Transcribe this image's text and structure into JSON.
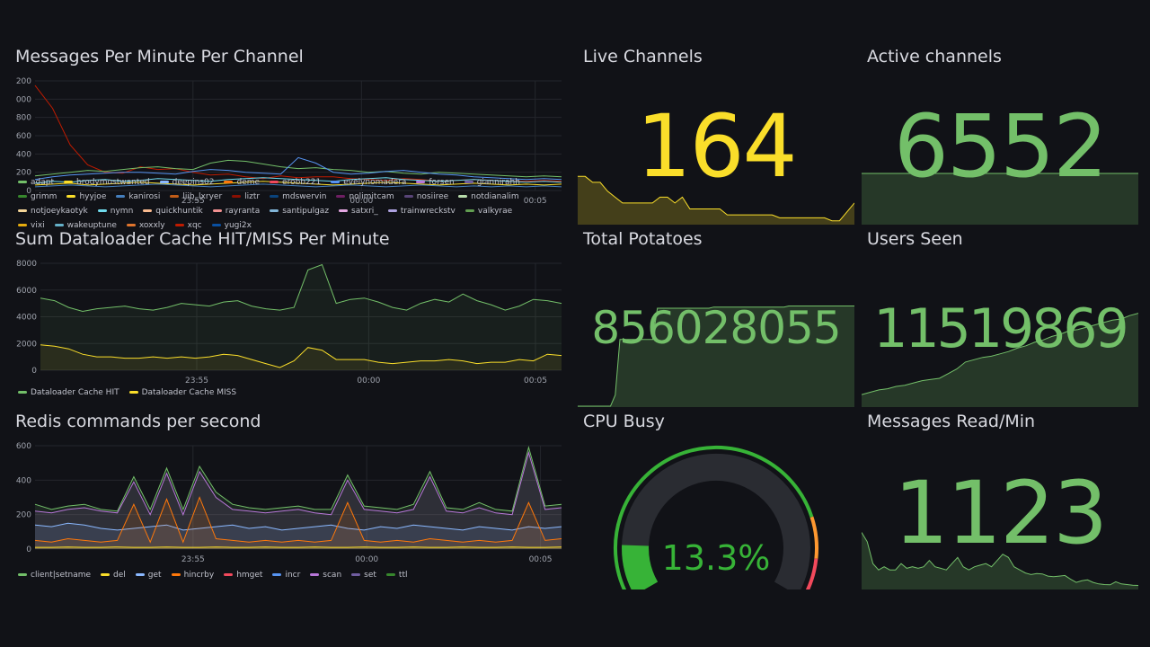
{
  "colors": {
    "background": "#111217",
    "grid": "#24262c",
    "axis_text": "#9fa3ad",
    "green": "#73bf69",
    "yellow": "#fade2a",
    "gauge_green": "#37b337",
    "gauge_orange": "#ff9830",
    "gauge_red": "#f2495c"
  },
  "panels": {
    "messages": {
      "title": "Messages Per Minute Per Channel",
      "legend": [
        {
          "name": "adapt",
          "color": "#73bf69"
        },
        {
          "name": "brodymostwanted",
          "color": "#fade2a"
        },
        {
          "name": "deepins02",
          "color": "#8ab8ff"
        },
        {
          "name": "deme",
          "color": "#ff780a"
        },
        {
          "name": "erobb221",
          "color": "#f2495c"
        },
        {
          "name": "evelynomadera",
          "color": "#5794f2"
        },
        {
          "name": "forsen",
          "color": "#b877d9"
        },
        {
          "name": "giannirahh",
          "color": "#705da0"
        },
        {
          "name": "grimm",
          "color": "#37872d"
        },
        {
          "name": "hyyjoe",
          "color": "#fade2a"
        },
        {
          "name": "kanirosi",
          "color": "#447ebc"
        },
        {
          "name": "liib_lxryer",
          "color": "#c15c17"
        },
        {
          "name": "liztr",
          "color": "#890f02"
        },
        {
          "name": "mdswervin",
          "color": "#0a437c"
        },
        {
          "name": "nolimitcam",
          "color": "#6d1f62"
        },
        {
          "name": "nosiiree",
          "color": "#584477"
        },
        {
          "name": "notdianalim",
          "color": "#b7dbab"
        },
        {
          "name": "notjoeykaotyk",
          "color": "#f4d598"
        },
        {
          "name": "nymn",
          "color": "#70dbed"
        },
        {
          "name": "quickhuntik",
          "color": "#f9ba8f"
        },
        {
          "name": "rayranta",
          "color": "#f29191"
        },
        {
          "name": "santipulgaz",
          "color": "#82b5d8"
        },
        {
          "name": "satxri_",
          "color": "#e5a8e2"
        },
        {
          "name": "trainwreckstv",
          "color": "#aea2e0"
        },
        {
          "name": "valkyrae",
          "color": "#629e51"
        },
        {
          "name": "vixi",
          "color": "#e5ac0e"
        },
        {
          "name": "wakeuptune",
          "color": "#64b0c8"
        },
        {
          "name": "xoxxly",
          "color": "#e0752d"
        },
        {
          "name": "xqc",
          "color": "#bf1b00"
        },
        {
          "name": "yugi2x",
          "color": "#0a50a1"
        }
      ]
    },
    "cache": {
      "title": "Sum Dataloader Cache HIT/MISS Per Minute",
      "legend": [
        {
          "name": "Dataloader Cache HIT",
          "color": "#73bf69"
        },
        {
          "name": "Dataloader Cache MISS",
          "color": "#fade2a"
        }
      ]
    },
    "redis": {
      "title": "Redis commands per second",
      "legend": [
        {
          "name": "client|setname",
          "color": "#73bf69"
        },
        {
          "name": "del",
          "color": "#fade2a"
        },
        {
          "name": "get",
          "color": "#8ab8ff"
        },
        {
          "name": "hincrby",
          "color": "#ff780a"
        },
        {
          "name": "hmget",
          "color": "#f2495c"
        },
        {
          "name": "incr",
          "color": "#5794f2"
        },
        {
          "name": "scan",
          "color": "#b877d9"
        },
        {
          "name": "set",
          "color": "#705da0"
        },
        {
          "name": "ttl",
          "color": "#37872d"
        }
      ]
    },
    "live_channels": {
      "title": "Live Channels",
      "value": "164"
    },
    "active_channels": {
      "title": "Active channels",
      "value": "6552"
    },
    "total_potatoes": {
      "title": "Total Potatoes",
      "value": "856028055"
    },
    "users_seen": {
      "title": "Users Seen",
      "value": "11519869"
    },
    "cpu_busy": {
      "title": "CPU Busy",
      "value": "13.3%",
      "percent": 13.3
    },
    "messages_read": {
      "title": "Messages Read/Min",
      "value": "1123"
    }
  },
  "chart_data": [
    {
      "type": "line",
      "id": "messages",
      "ylim": [
        0,
        1200
      ],
      "yticks": [
        "0",
        "200",
        "400",
        "600",
        "800",
        "1000",
        "1200"
      ],
      "xticks": [
        "23:55",
        "00:00",
        "00:05"
      ],
      "series": [
        {
          "name": "xqc",
          "color": "#bf1b00",
          "values": [
            1150,
            900,
            500,
            280,
            200,
            190,
            260,
            230,
            240,
            200,
            170,
            180,
            150,
            130,
            160,
            140,
            150,
            150,
            130,
            120,
            110,
            130,
            120,
            100,
            110,
            120,
            110,
            100,
            100,
            110,
            100
          ]
        },
        {
          "name": "adapt",
          "color": "#73bf69",
          "values": [
            160,
            180,
            200,
            220,
            210,
            230,
            250,
            260,
            240,
            230,
            300,
            330,
            320,
            290,
            260,
            240,
            250,
            230,
            220,
            200,
            210,
            190,
            180,
            200,
            190,
            180,
            170,
            160,
            150,
            160,
            150
          ]
        },
        {
          "name": "evelynomadera",
          "color": "#5794f2",
          "values": [
            120,
            150,
            170,
            180,
            190,
            200,
            200,
            190,
            180,
            210,
            230,
            220,
            200,
            190,
            180,
            360,
            300,
            200,
            180,
            190,
            210,
            220,
            200,
            180,
            170,
            150,
            140,
            130,
            120,
            130,
            120
          ]
        },
        {
          "name": "nymn",
          "color": "#70dbed",
          "values": [
            80,
            100,
            90,
            110,
            120,
            100,
            110,
            130,
            120,
            110,
            100,
            120,
            130,
            140,
            130,
            120,
            110,
            100,
            120,
            130,
            140,
            120,
            110,
            100,
            110,
            120,
            110,
            100,
            90,
            100,
            90
          ]
        },
        {
          "name": "brodymostwanted",
          "color": "#fade2a",
          "values": [
            60,
            70,
            80,
            60,
            70,
            80,
            90,
            80,
            70,
            60,
            70,
            80,
            90,
            100,
            90,
            80,
            70,
            60,
            70,
            80,
            90,
            80,
            70,
            60,
            70,
            80,
            70,
            60,
            70,
            60,
            70
          ]
        },
        {
          "name": "kanirosi",
          "color": "#447ebc",
          "values": [
            40,
            50,
            60,
            50,
            40,
            50,
            60,
            70,
            60,
            50,
            40,
            50,
            60,
            70,
            60,
            50,
            40,
            50,
            60,
            50,
            40,
            50,
            60,
            50,
            40,
            50,
            40,
            50,
            40,
            50,
            40
          ]
        }
      ]
    },
    {
      "type": "area",
      "id": "cache",
      "ylim": [
        0,
        8000
      ],
      "yticks": [
        "0",
        "2000",
        "4000",
        "6000",
        "8000"
      ],
      "xticks": [
        "23:55",
        "00:00",
        "00:05"
      ],
      "series": [
        {
          "name": "Dataloader Cache HIT",
          "color": "#73bf69",
          "values": [
            5400,
            5200,
            4700,
            4400,
            4600,
            4700,
            4800,
            4600,
            4500,
            4700,
            5000,
            4900,
            4800,
            5100,
            5200,
            4800,
            4600,
            4500,
            4700,
            7500,
            7900,
            5000,
            5300,
            5400,
            5100,
            4700,
            4500,
            5000,
            5300,
            5100,
            5700,
            5200,
            4900,
            4500,
            4800,
            5300,
            5200,
            5000
          ]
        },
        {
          "name": "Dataloader Cache MISS",
          "color": "#fade2a",
          "values": [
            1900,
            1800,
            1600,
            1200,
            1000,
            1000,
            900,
            900,
            1000,
            900,
            1000,
            900,
            1000,
            1200,
            1100,
            800,
            500,
            200,
            700,
            1700,
            1500,
            800,
            800,
            800,
            600,
            500,
            600,
            700,
            700,
            800,
            700,
            500,
            600,
            600,
            800,
            700,
            1200,
            1100
          ]
        }
      ]
    },
    {
      "type": "area",
      "id": "redis",
      "ylim": [
        0,
        600
      ],
      "yticks": [
        "0",
        "200",
        "400",
        "600"
      ],
      "xticks": [
        "23:55",
        "00:00",
        "00:05"
      ],
      "series": [
        {
          "name": "client|setname",
          "color": "#73bf69",
          "values": [
            260,
            230,
            250,
            260,
            230,
            220,
            420,
            230,
            470,
            230,
            480,
            330,
            260,
            240,
            230,
            240,
            250,
            230,
            230,
            430,
            250,
            240,
            230,
            260,
            450,
            240,
            230,
            270,
            230,
            220,
            590,
            250,
            260
          ]
        },
        {
          "name": "scan",
          "color": "#b877d9",
          "values": [
            220,
            210,
            230,
            240,
            220,
            210,
            390,
            200,
            440,
            200,
            450,
            300,
            230,
            220,
            210,
            220,
            230,
            210,
            200,
            400,
            230,
            220,
            210,
            230,
            420,
            220,
            210,
            240,
            210,
            200,
            560,
            230,
            240
          ]
        },
        {
          "name": "get",
          "color": "#8ab8ff",
          "values": [
            140,
            130,
            150,
            140,
            120,
            110,
            120,
            130,
            140,
            110,
            120,
            130,
            140,
            120,
            130,
            110,
            120,
            130,
            140,
            120,
            110,
            130,
            120,
            140,
            130,
            120,
            110,
            130,
            120,
            110,
            130,
            120,
            130
          ]
        },
        {
          "name": "hincrby",
          "color": "#ff780a",
          "values": [
            50,
            40,
            60,
            50,
            40,
            50,
            260,
            40,
            290,
            40,
            300,
            60,
            50,
            40,
            50,
            40,
            50,
            40,
            50,
            270,
            50,
            40,
            50,
            40,
            60,
            50,
            40,
            50,
            40,
            50,
            270,
            50,
            60
          ]
        },
        {
          "name": "del",
          "color": "#fade2a",
          "values": [
            10,
            10,
            12,
            10,
            10,
            12,
            10,
            10,
            12,
            10,
            10,
            12,
            10,
            10,
            12,
            10,
            10,
            12,
            10,
            10,
            12,
            10,
            10,
            12,
            10,
            10,
            12,
            10,
            10,
            12,
            10,
            10,
            12
          ]
        }
      ]
    },
    {
      "type": "area",
      "id": "live_channels",
      "values": [
        195,
        195,
        185,
        185,
        170,
        160,
        150,
        150,
        150,
        150,
        150,
        160,
        160,
        150,
        160,
        140,
        140,
        140,
        140,
        140,
        130,
        130,
        130,
        130,
        130,
        130,
        130,
        125,
        125,
        125,
        125,
        125,
        125,
        125,
        120,
        120,
        135,
        150
      ]
    },
    {
      "type": "area",
      "id": "active_channels",
      "values": [
        6552,
        6552,
        6552,
        6552,
        6552,
        6552,
        6552,
        6552,
        6552,
        6552,
        6552,
        6552,
        6552,
        6552,
        6552,
        6552,
        6552,
        6552,
        6552,
        6552
      ]
    },
    {
      "type": "area",
      "id": "total_potatoes",
      "values": [
        0,
        0,
        0,
        0,
        0,
        0,
        0,
        0,
        10,
        60,
        60,
        60,
        60,
        60,
        60,
        60,
        60,
        88,
        88,
        88,
        88,
        88,
        88,
        88,
        88,
        88,
        88,
        88,
        88,
        89,
        89,
        89,
        89,
        89,
        89,
        89,
        89,
        89,
        89,
        89,
        89,
        89,
        89,
        89,
        89,
        90,
        90,
        90,
        90,
        90,
        90,
        90,
        90,
        90,
        90,
        90,
        90,
        90,
        90,
        90
      ]
    },
    {
      "type": "area",
      "id": "users_seen",
      "values": [
        10,
        12,
        14,
        15,
        17,
        18,
        20,
        22,
        23,
        24,
        28,
        32,
        38,
        40,
        42,
        43,
        45,
        47,
        50,
        52,
        55,
        57,
        60,
        62,
        65,
        66,
        68,
        70,
        72,
        74,
        75,
        78,
        80
      ]
    },
    {
      "type": "area",
      "id": "messages_read",
      "values": [
        1800,
        1500,
        800,
        600,
        700,
        600,
        600,
        800,
        650,
        700,
        650,
        700,
        900,
        700,
        650,
        600,
        800,
        1000,
        700,
        600,
        700,
        750,
        800,
        700,
        900,
        1100,
        1000,
        700,
        600,
        500,
        450,
        480,
        470,
        400,
        380,
        400,
        420,
        300,
        200,
        250,
        280,
        200,
        150,
        130,
        120,
        220,
        150,
        130,
        110,
        100
      ]
    }
  ]
}
